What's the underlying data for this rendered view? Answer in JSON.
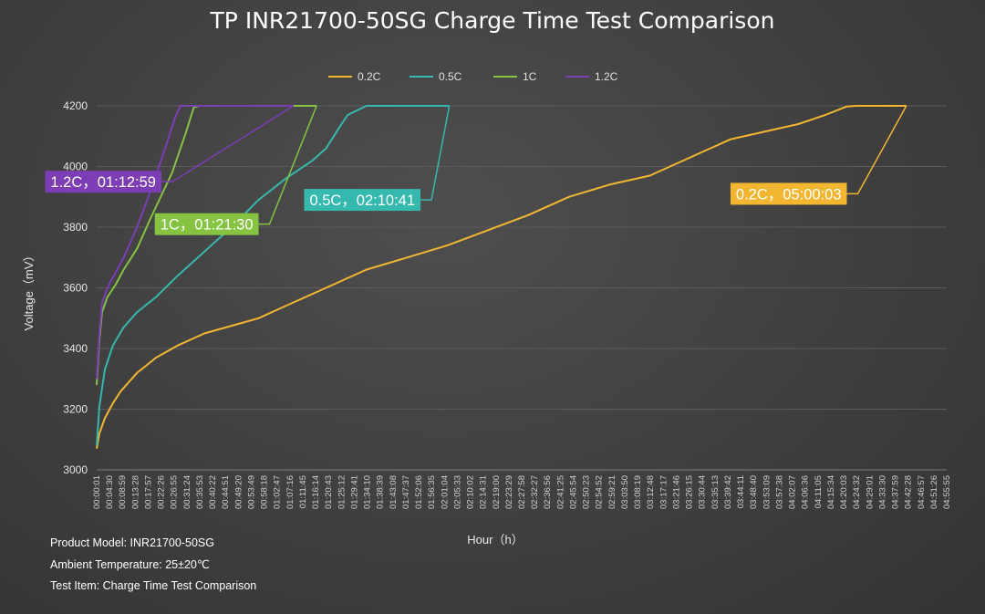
{
  "chart_data": {
    "type": "line",
    "title": "TP INR21700-50SG Charge Time Test Comparison",
    "xlabel": "Hour（h）",
    "ylabel": "Voltage（mV）",
    "ylim": [
      3000,
      4200
    ],
    "yticks": [
      3000,
      3200,
      3400,
      3600,
      3800,
      4000,
      4200
    ],
    "xlim_seconds": [
      0,
      18900
    ],
    "x_tick_labels": [
      "00:00:01",
      "00:04:30",
      "00:08:59",
      "00:13:28",
      "00:17:57",
      "00:22:26",
      "00:26:55",
      "00:31:24",
      "00:35:53",
      "00:40:22",
      "00:44:51",
      "00:49:20",
      "00:53:49",
      "00:58:18",
      "01:02:47",
      "01:07:16",
      "01:11:45",
      "01:16:14",
      "01:20:43",
      "01:25:12",
      "01:29:41",
      "01:34:10",
      "01:38:39",
      "01:43:08",
      "01:47:37",
      "01:52:06",
      "01:56:35",
      "02:01:04",
      "02:05:33",
      "02:10:02",
      "02:14:31",
      "02:19:00",
      "02:23:29",
      "02:27:58",
      "02:32:27",
      "02:36:56",
      "02:41:25",
      "02:45:54",
      "02:50:23",
      "02:54:52",
      "02:59:21",
      "03:03:50",
      "03:08:19",
      "03:12:48",
      "03:17:17",
      "03:21:46",
      "03:26:15",
      "03:30:44",
      "03:35:13",
      "03:39:42",
      "03:44:11",
      "03:48:40",
      "03:53:09",
      "03:57:38",
      "04:02:07",
      "04:06:36",
      "04:11:05",
      "04:15:34",
      "04:20:03",
      "04:24:32",
      "04:29:01",
      "04:33:30",
      "04:37:59",
      "04:42:28",
      "04:46:57",
      "04:51:26",
      "04:55:55"
    ],
    "legend_position": "top-center",
    "grid": "horizontal",
    "series": [
      {
        "name": "0.2C",
        "color": "#f2b630",
        "x": [
          "00:00:01",
          "00:01:00",
          "00:03:00",
          "00:06:00",
          "00:09:00",
          "00:15:00",
          "00:22:00",
          "00:30:00",
          "00:40:00",
          "00:50:00",
          "01:00:00",
          "01:10:00",
          "01:25:00",
          "01:40:00",
          "01:55:00",
          "02:10:00",
          "02:25:00",
          "02:40:00",
          "02:55:00",
          "03:10:00",
          "03:25:00",
          "03:40:00",
          "03:55:00",
          "04:10:00",
          "04:20:00",
          "04:30:00",
          "04:38:00",
          "04:41:30",
          "05:00:03"
        ],
        "y": [
          3070,
          3120,
          3170,
          3220,
          3260,
          3320,
          3370,
          3410,
          3450,
          3475,
          3500,
          3540,
          3600,
          3660,
          3700,
          3740,
          3790,
          3840,
          3900,
          3940,
          3970,
          4030,
          4090,
          4120,
          4140,
          4170,
          4198,
          4200,
          4200
        ],
        "annotation": {
          "text": "0.2C，05:00:03",
          "at_x": "04:38:00",
          "at_y": 3910
        }
      },
      {
        "name": "0.5C",
        "color": "#35b8ad",
        "x": [
          "00:00:01",
          "00:01:00",
          "00:03:00",
          "00:06:00",
          "00:10:00",
          "00:15:00",
          "00:22:00",
          "00:30:00",
          "00:40:00",
          "00:50:00",
          "01:00:00",
          "01:10:00",
          "01:20:00",
          "01:25:00",
          "01:30:00",
          "01:33:00",
          "01:40:00",
          "01:43:00",
          "02:01:00",
          "02:10:41"
        ],
        "y": [
          3080,
          3210,
          3330,
          3410,
          3470,
          3520,
          3570,
          3640,
          3720,
          3800,
          3890,
          3960,
          4020,
          4060,
          4130,
          4170,
          4200,
          4200,
          4200,
          4200
        ],
        "annotation": {
          "text": "0.5C，02:10:41",
          "at_x": "02:00:00",
          "at_y": 3890
        }
      },
      {
        "name": "1C",
        "color": "#86c341",
        "x": [
          "00:00:01",
          "00:01:00",
          "00:02:00",
          "00:04:00",
          "00:07:00",
          "00:10:00",
          "00:15:00",
          "00:20:00",
          "00:28:00",
          "00:33:00",
          "00:36:00",
          "00:38:00",
          "01:15:00",
          "01:21:30"
        ],
        "y": [
          3280,
          3430,
          3520,
          3570,
          3610,
          3660,
          3730,
          3830,
          3980,
          4110,
          4195,
          4200,
          4200,
          4200
        ],
        "annotation": {
          "text": "1C，01:21:30",
          "at_x": "01:00:00",
          "at_y": 3810
        }
      },
      {
        "name": "1.2C",
        "color": "#7d3db5",
        "x": [
          "00:00:01",
          "00:01:00",
          "00:02:00",
          "00:04:00",
          "00:07:00",
          "00:10:00",
          "00:15:00",
          "00:20:00",
          "00:25:00",
          "00:29:00",
          "00:31:00",
          "01:10:00",
          "01:12:59"
        ],
        "y": [
          3300,
          3450,
          3550,
          3600,
          3650,
          3700,
          3800,
          3920,
          4050,
          4160,
          4200,
          4200,
          4200
        ],
        "annotation": {
          "text": "1.2C，01:12:59",
          "at_x": "00:24:00",
          "at_y": 3950
        }
      }
    ]
  },
  "notes": {
    "product_model": "Product Model: INR21700-50SG",
    "ambient_temperature": "Ambient Temperature: 25±20℃",
    "test_item": "Test Item: Charge Time Test Comparison"
  }
}
